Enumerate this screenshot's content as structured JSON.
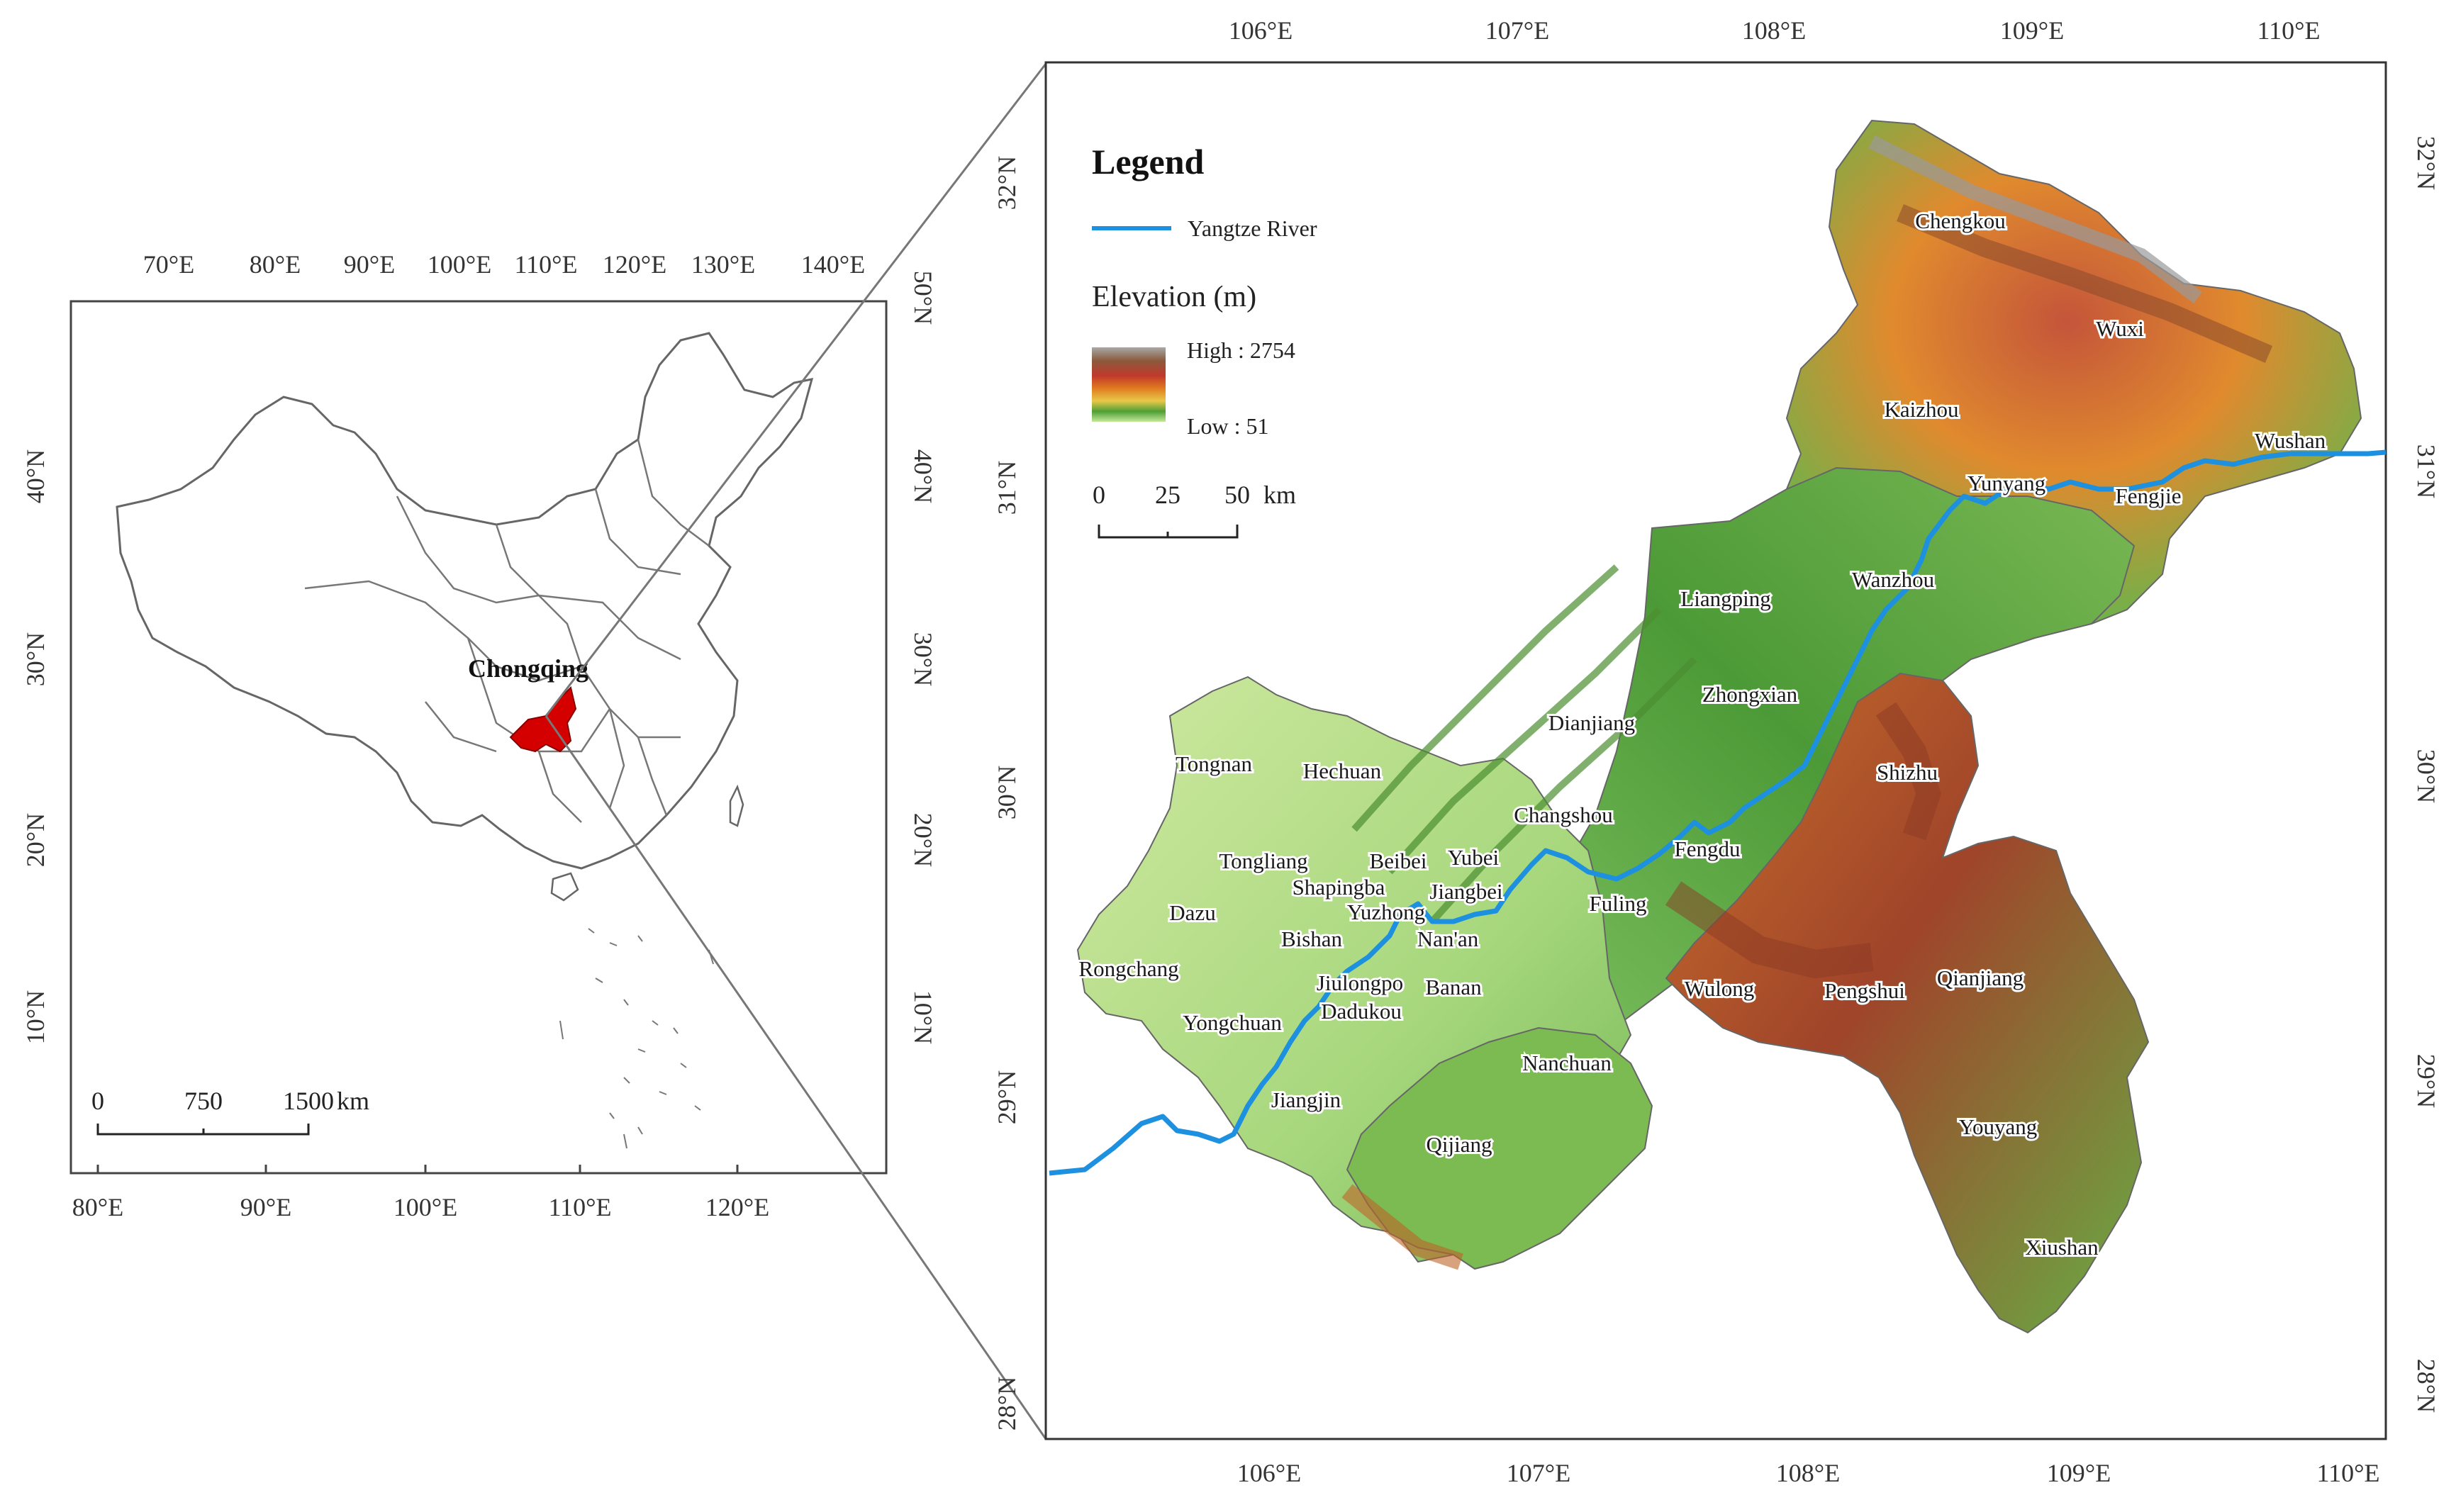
{
  "inset": {
    "top_ticks": [
      "70°E",
      "80°E",
      "90°E",
      "100°E",
      "110°E",
      "120°E",
      "130°E",
      "140°E"
    ],
    "bottom_ticks": [
      "80°E",
      "90°E",
      "100°E",
      "110°E",
      "120°E"
    ],
    "left_ticks": [
      "10°N",
      "20°N",
      "30°N",
      "40°N"
    ],
    "right_ticks": [
      "10°N",
      "20°N",
      "30°N",
      "40°N",
      "50°N"
    ],
    "highlight_label": "Chongqing",
    "highlight_color": "#d40000",
    "scale": {
      "labels": [
        "0",
        "750",
        "1500"
      ],
      "unit": "km"
    }
  },
  "main": {
    "top_ticks": [
      "106°E",
      "107°E",
      "108°E",
      "109°E",
      "110°E"
    ],
    "bottom_ticks": [
      "106°E",
      "107°E",
      "108°E",
      "109°E",
      "110°E"
    ],
    "left_ticks": [
      "28°N",
      "29°N",
      "30°N",
      "31°N",
      "32°N"
    ],
    "right_ticks": [
      "28°N",
      "29°N",
      "30°N",
      "31°N",
      "32°N"
    ],
    "legend": {
      "title": "Legend",
      "river_label": "Yangtze River",
      "river_color": "#1e90e0",
      "elevation_title": "Elevation (m)",
      "high_label": "High : 2754",
      "low_label": "Low : 51",
      "ramp_colors": [
        "#aaaaaa",
        "#8b5a3c",
        "#c0392b",
        "#e07b20",
        "#e8c84a",
        "#5aab3c",
        "#b8e08a"
      ]
    },
    "scale": {
      "labels": [
        "0",
        "25",
        "50"
      ],
      "unit": "km"
    },
    "places": [
      "Chengkou",
      "Wuxi",
      "Kaizhou",
      "Wushan",
      "Yunyang",
      "Fengjie",
      "Wanzhou",
      "Liangping",
      "Zhongxian",
      "Dianjiang",
      "Shizhu",
      "Tongnan",
      "Hechuan",
      "Changshou",
      "Fengdu",
      "Tongliang",
      "Beibei",
      "Yubei",
      "Shapingba",
      "Jiangbei",
      "Fuling",
      "Dazu",
      "Yuzhong",
      "Bishan",
      "Nan'an",
      "Rongchang",
      "Jiulongpo",
      "Banan",
      "Wulong",
      "Pengshui",
      "Qianjiang",
      "Yongchuan",
      "Dadukou",
      "Nanchuan",
      "Jiangjin",
      "Qijiang",
      "Youyang",
      "Xiushan"
    ]
  }
}
